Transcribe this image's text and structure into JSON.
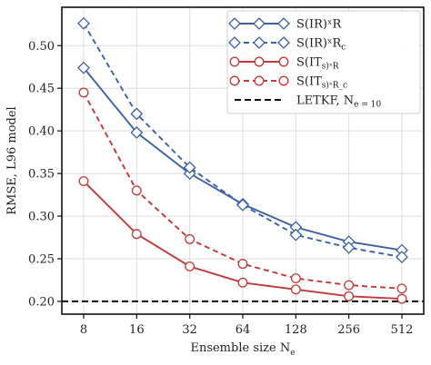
{
  "chart_data": {
    "type": "line",
    "xlabel": "Ensemble size N",
    "xlabel_sub": "e",
    "ylabel": "RMSE, L96 model",
    "x": [
      8,
      16,
      32,
      64,
      128,
      256,
      512
    ],
    "x_tick_labels": [
      "8",
      "16",
      "32",
      "64",
      "128",
      "256",
      "512"
    ],
    "x_scale": "log2",
    "ylim": [
      0.185,
      0.545
    ],
    "y_ticks": [
      0.2,
      0.25,
      0.3,
      0.35,
      0.4,
      0.45,
      0.5
    ],
    "y_tick_labels": [
      "0.20",
      "0.25",
      "0.30",
      "0.35",
      "0.40",
      "0.45",
      "0.50"
    ],
    "grid": true,
    "legend_position": "top-right",
    "series": [
      {
        "name": "S(IR)ˣR",
        "color": "#3b62a3",
        "dash": "solid",
        "marker": "diamond",
        "values": [
          0.474,
          0.398,
          0.35,
          0.314,
          0.287,
          0.27,
          0.26
        ]
      },
      {
        "name": "S(IR)ˣR_c",
        "color": "#3b62a3",
        "dash": "dashed",
        "marker": "diamond",
        "values": [
          0.526,
          0.42,
          0.357,
          0.313,
          0.278,
          0.263,
          0.252
        ]
      },
      {
        "name": "S(IT_s)ˣR",
        "color": "#c0393b",
        "dash": "solid",
        "marker": "circle",
        "values": [
          0.341,
          0.279,
          0.241,
          0.222,
          0.214,
          0.206,
          0.203
        ]
      },
      {
        "name": "S(IT_s)ˣR_c",
        "color": "#c0393b",
        "dash": "dashed",
        "marker": "circle",
        "values": [
          0.445,
          0.33,
          0.273,
          0.244,
          0.227,
          0.219,
          0.215
        ]
      }
    ],
    "reference_line": {
      "name": "LETKF, N_e = 10",
      "value": 0.2,
      "color": "#111111",
      "dash": "dashed"
    }
  }
}
